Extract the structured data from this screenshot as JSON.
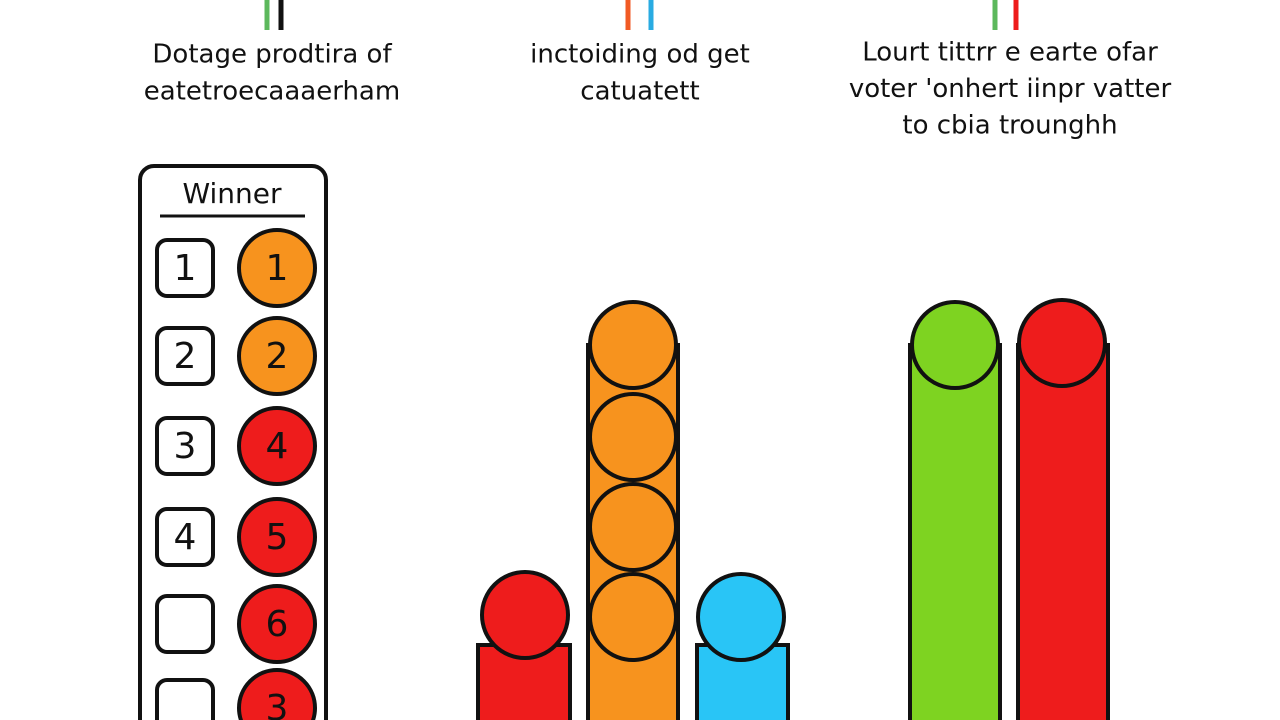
{
  "captions": [
    {
      "lines": [
        "Dotage prodtira of",
        "eatetroecaaaerham"
      ]
    },
    {
      "lines": [
        "inctoiding od get",
        "catuatett"
      ]
    },
    {
      "lines": [
        "Lourt tittrr e earte ofar",
        "voter 'onhert iinpr vatter",
        "to cbia trounghh"
      ]
    }
  ],
  "panel": {
    "title": "Winner",
    "rows": [
      {
        "box": "1",
        "circle": "1",
        "color": "#f7931e"
      },
      {
        "box": "2",
        "circle": "2",
        "color": "#f7931e"
      },
      {
        "box": "3",
        "circle": "4",
        "color": "#ee1c1c"
      },
      {
        "box": "4",
        "circle": "5",
        "color": "#ee1c1c"
      },
      {
        "circle": "6",
        "color": "#ee1c1c"
      },
      {
        "circle": "3",
        "color": "#ee1c1c"
      }
    ]
  }
}
